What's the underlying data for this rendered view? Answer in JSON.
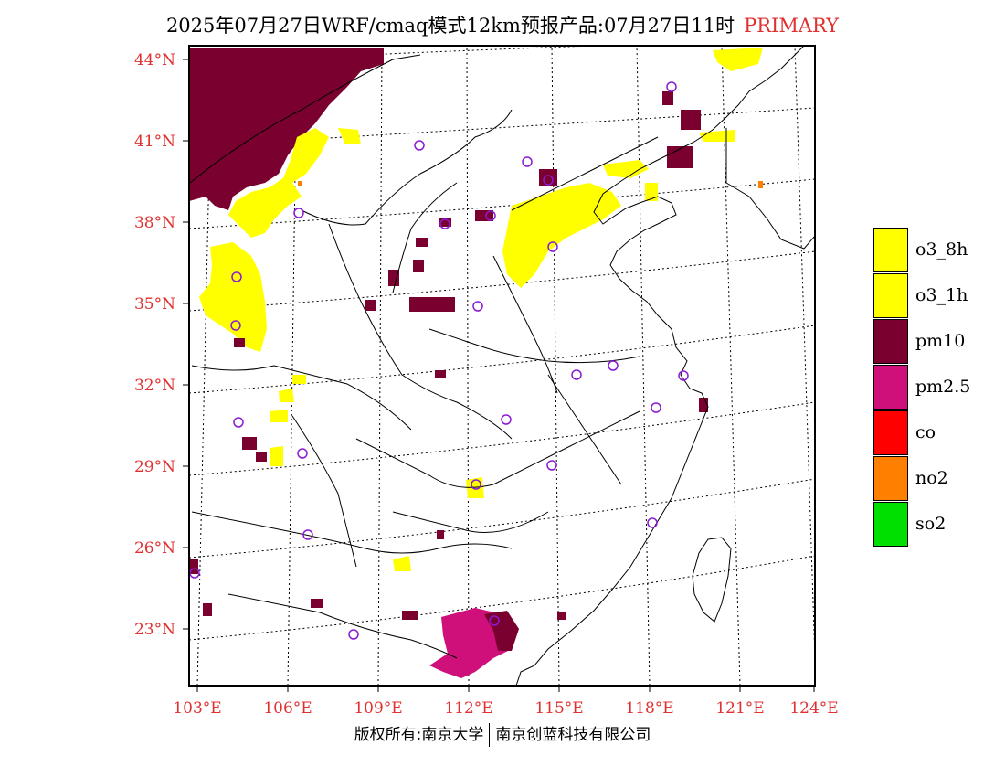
{
  "title": {
    "main": "2025年07月27日WRF/cmaq模式12km预报产品:07月27日11时",
    "tag": "PRIMARY"
  },
  "axes": {
    "lat_labels": [
      "44°N",
      "41°N",
      "38°N",
      "35°N",
      "32°N",
      "29°N",
      "26°N",
      "23°N"
    ],
    "lon_labels": [
      "103°E",
      "106°E",
      "109°E",
      "112°E",
      "115°E",
      "118°E",
      "121°E",
      "124°E"
    ],
    "label_color": "#e03030"
  },
  "legend": [
    {
      "label": "o3_8h",
      "color": "#ffff00"
    },
    {
      "label": "o3_1h",
      "color": "#ffff00"
    },
    {
      "label": "pm10",
      "color": "#7a0030"
    },
    {
      "label": "pm2.5",
      "color": "#d0107a"
    },
    {
      "label": "co",
      "color": "#ff0000"
    },
    {
      "label": "no2",
      "color": "#ff8000"
    },
    {
      "label": "so2",
      "color": "#00e000"
    }
  ],
  "footer": {
    "left": "版权所有:南京大学",
    "right": "南京创蓝科技有限公司"
  }
}
